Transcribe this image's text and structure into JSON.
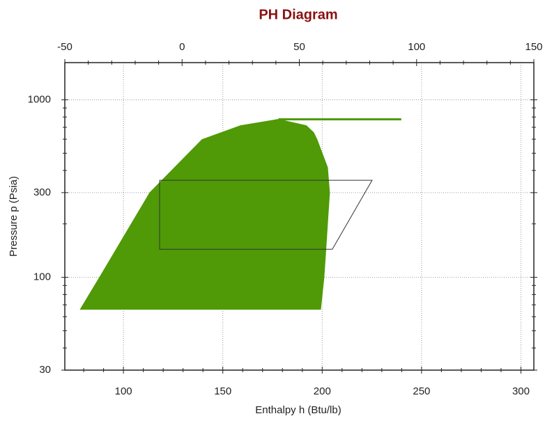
{
  "chart_data": {
    "type": "line",
    "title": "PH Diagram",
    "x_label": "Enthalpy h (Btu/lb)",
    "y_label": "Pressure p (Psia)",
    "xlim": [
      70.5,
      306.5
    ],
    "xticks": [
      100,
      150,
      200,
      250,
      300
    ],
    "xticks_minor": [
      80,
      90,
      110,
      120,
      130,
      140,
      160,
      170,
      180,
      190,
      210,
      220,
      230,
      240,
      260,
      270,
      280,
      290
    ],
    "x2lim": [
      -50,
      150
    ],
    "x2ticks": [
      -50,
      0,
      50,
      100,
      150
    ],
    "x2ticks_minor": [
      -40,
      -30,
      -20,
      -10,
      10,
      20,
      30,
      40,
      60,
      70,
      80,
      90,
      110,
      120,
      130,
      140
    ],
    "ylim": [
      30,
      1620
    ],
    "yticks": [
      30,
      100,
      300,
      1000
    ],
    "yticks_minor": [
      40,
      50,
      60,
      70,
      80,
      90,
      200,
      400,
      500,
      600,
      700,
      800,
      900
    ],
    "log_y": true,
    "grid": true,
    "series": [
      {
        "color": "#4f9a06",
        "fill": true,
        "x": [
          78.3,
          88,
          113.3,
          139.6,
          158.9,
          169.4,
          178,
          192,
          195.7,
          197.4,
          202.7,
          203.7,
          202,
          200.9,
          199.2
        ],
        "values": [
          66,
          100,
          300,
          597,
          715,
          748,
          776,
          715,
          654,
          597,
          415,
          300,
          153,
          100,
          66
        ]
      },
      {
        "color": "#4f9a06",
        "fill": false,
        "x": [
          178,
          239.8
        ],
        "values": [
          776,
          776
        ]
      },
      {
        "color": "#333333",
        "fill": false,
        "closed": true,
        "x": [
          118.2,
          225.1,
          205.1,
          118.2
        ],
        "values": [
          352,
          352,
          144,
          144
        ]
      }
    ]
  }
}
